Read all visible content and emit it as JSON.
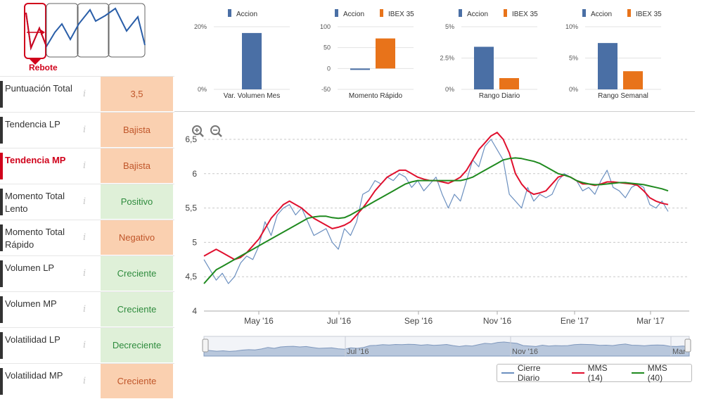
{
  "pattern": {
    "label": "Rebote"
  },
  "indicators": [
    {
      "label": "Puntuación Total",
      "value": "3,5",
      "tone": "orange",
      "active": false
    },
    {
      "label": "Tendencia LP",
      "value": "Bajista",
      "tone": "orange",
      "active": false
    },
    {
      "label": "Tendencia MP",
      "value": "Bajista",
      "tone": "orange",
      "active": true
    },
    {
      "label": "Momento Total Lento",
      "value": "Positivo",
      "tone": "green",
      "active": false
    },
    {
      "label": "Momento Total Rápido",
      "value": "Negativo",
      "tone": "orange",
      "active": false
    },
    {
      "label": "Volumen LP",
      "value": "Creciente",
      "tone": "green",
      "active": false
    },
    {
      "label": "Volumen MP",
      "value": "Creciente",
      "tone": "green",
      "active": false
    },
    {
      "label": "Volatilidad LP",
      "value": "Decreciente",
      "tone": "green",
      "active": false
    },
    {
      "label": "Volatilidad MP",
      "value": "Creciente",
      "tone": "orange",
      "active": false
    }
  ],
  "info_glyph": "i",
  "zoom": {
    "in_icon": "zoom-in-icon",
    "out_icon": "zoom-out-icon"
  },
  "colors": {
    "accion": "#4a6fa5",
    "ibex": "#e8731a",
    "cierre": "#6b8fbf",
    "mms14": "#e0102e",
    "mms40": "#1f8a1f",
    "orange_bg": "#fad0b0",
    "green_bg": "#dff0d8"
  },
  "chart_data": [
    {
      "type": "bar",
      "legend": [
        "Accion"
      ],
      "categories": [
        "Var. Volumen Mes"
      ],
      "series": [
        {
          "name": "Accion",
          "values": [
            18
          ]
        }
      ],
      "yticks": [
        "20%",
        "0%"
      ],
      "ylim": [
        0,
        20
      ]
    },
    {
      "type": "bar",
      "legend": [
        "Accion",
        "IBEX 35"
      ],
      "categories": [
        "Momento Rápido"
      ],
      "series": [
        {
          "name": "Accion",
          "values": [
            -3
          ]
        },
        {
          "name": "IBEX 35",
          "values": [
            72
          ]
        }
      ],
      "yticks": [
        "100",
        "50",
        "0",
        "-50"
      ],
      "ylim": [
        -50,
        100
      ]
    },
    {
      "type": "bar",
      "legend": [
        "Accion",
        "IBEX 35"
      ],
      "categories": [
        "Rango Diario"
      ],
      "series": [
        {
          "name": "Accion",
          "values": [
            3.4
          ]
        },
        {
          "name": "IBEX 35",
          "values": [
            0.9
          ]
        }
      ],
      "yticks": [
        "5%",
        "2.5%",
        "0%"
      ],
      "ylim": [
        0,
        5
      ]
    },
    {
      "type": "bar",
      "legend": [
        "Accion",
        "IBEX 35"
      ],
      "categories": [
        "Rango Semanal"
      ],
      "series": [
        {
          "name": "Accion",
          "values": [
            7.4
          ]
        },
        {
          "name": "IBEX 35",
          "values": [
            2.9
          ]
        }
      ],
      "yticks": [
        "10%",
        "5%",
        "0%"
      ],
      "ylim": [
        0,
        10
      ]
    },
    {
      "type": "line",
      "x_ticks": [
        "May '16",
        "Jul '16",
        "Sep '16",
        "Nov '16",
        "Ene '17",
        "Mar '17"
      ],
      "y_ticks": [
        "6,5",
        "6",
        "5,5",
        "5",
        "4,5",
        "4"
      ],
      "ylim": [
        4,
        6.5
      ],
      "navigator_ticks": [
        "Jul '16",
        "Nov '16",
        "Mar"
      ],
      "legend": [
        "Cierre Diario",
        "MMS (14)",
        "MMS (40)"
      ],
      "series": [
        {
          "name": "Cierre Diario",
          "values": [
            4.75,
            4.6,
            4.45,
            4.55,
            4.4,
            4.5,
            4.7,
            4.8,
            4.75,
            4.95,
            5.3,
            5.1,
            5.4,
            5.5,
            5.55,
            5.4,
            5.5,
            5.3,
            5.1,
            5.15,
            5.2,
            5.0,
            4.9,
            5.2,
            5.1,
            5.3,
            5.7,
            5.75,
            5.9,
            5.85,
            5.95,
            5.9,
            6.0,
            5.95,
            5.8,
            5.9,
            5.75,
            5.85,
            5.95,
            5.7,
            5.5,
            5.7,
            5.6,
            5.9,
            6.2,
            6.1,
            6.4,
            6.5,
            6.35,
            6.2,
            5.7,
            5.6,
            5.5,
            5.8,
            5.6,
            5.7,
            5.65,
            5.7,
            5.9,
            6.0,
            5.95,
            5.9,
            5.75,
            5.8,
            5.7,
            5.9,
            6.05,
            5.8,
            5.75,
            5.65,
            5.8,
            5.85,
            5.8,
            5.55,
            5.5,
            5.6,
            5.45
          ]
        },
        {
          "name": "MMS (14)",
          "values": [
            4.8,
            4.85,
            4.9,
            4.85,
            4.8,
            4.75,
            4.78,
            4.85,
            4.95,
            5.05,
            5.2,
            5.35,
            5.45,
            5.55,
            5.6,
            5.55,
            5.5,
            5.42,
            5.35,
            5.3,
            5.25,
            5.2,
            5.22,
            5.25,
            5.3,
            5.4,
            5.5,
            5.62,
            5.75,
            5.85,
            5.95,
            6.0,
            6.05,
            6.05,
            6.0,
            5.95,
            5.92,
            5.9,
            5.9,
            5.88,
            5.86,
            5.9,
            5.95,
            6.05,
            6.2,
            6.35,
            6.45,
            6.55,
            6.6,
            6.5,
            6.3,
            6.0,
            5.85,
            5.75,
            5.7,
            5.72,
            5.75,
            5.85,
            5.95,
            5.98,
            5.95,
            5.9,
            5.85,
            5.85,
            5.83,
            5.85,
            5.88,
            5.88,
            5.87,
            5.86,
            5.85,
            5.83,
            5.75,
            5.65,
            5.6,
            5.57,
            5.55
          ]
        },
        {
          "name": "MMS (40)",
          "values": [
            4.4,
            4.5,
            4.6,
            4.65,
            4.7,
            4.75,
            4.8,
            4.85,
            4.9,
            4.95,
            5.0,
            5.05,
            5.1,
            5.15,
            5.2,
            5.25,
            5.3,
            5.35,
            5.37,
            5.38,
            5.38,
            5.36,
            5.35,
            5.36,
            5.4,
            5.45,
            5.5,
            5.55,
            5.6,
            5.65,
            5.7,
            5.75,
            5.8,
            5.85,
            5.88,
            5.9,
            5.9,
            5.9,
            5.9,
            5.9,
            5.9,
            5.9,
            5.9,
            5.92,
            5.95,
            6.0,
            6.05,
            6.1,
            6.15,
            6.2,
            6.22,
            6.23,
            6.22,
            6.2,
            6.18,
            6.15,
            6.1,
            6.05,
            6.0,
            5.98,
            5.95,
            5.9,
            5.87,
            5.85,
            5.84,
            5.84,
            5.85,
            5.86,
            5.87,
            5.87,
            5.86,
            5.85,
            5.84,
            5.82,
            5.8,
            5.78,
            5.75
          ]
        }
      ]
    }
  ]
}
